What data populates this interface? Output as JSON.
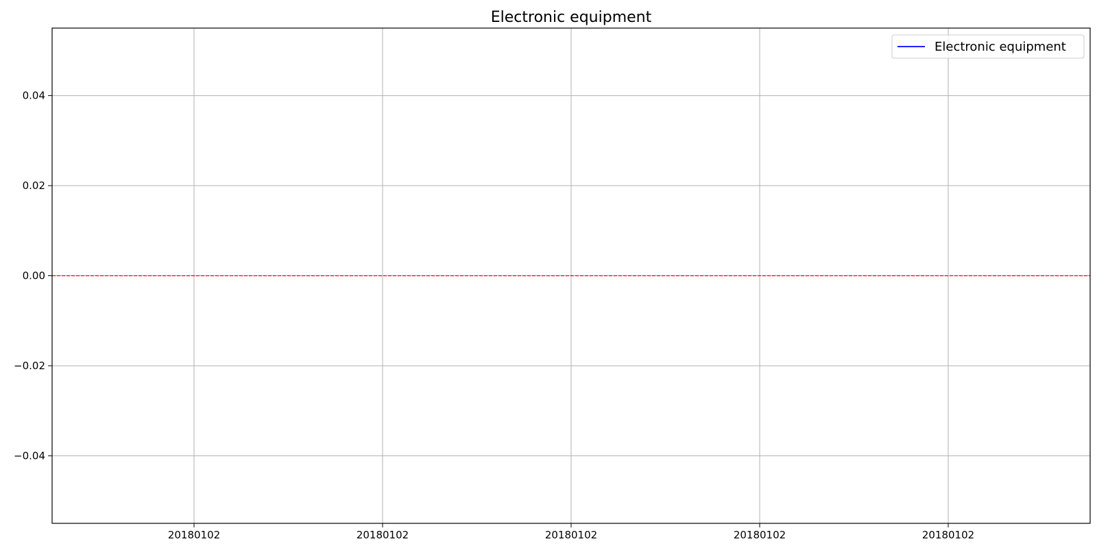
{
  "chart_data": {
    "type": "line",
    "title": "Electronic equipment",
    "xlabel": "",
    "ylabel": "",
    "x_ticks": [
      "20180102",
      "20180102",
      "20180102",
      "20180102",
      "20180102"
    ],
    "ylim": [
      -0.055,
      0.055
    ],
    "y_ticks": [
      "−0.04",
      "−0.02",
      "0.00",
      "0.02",
      "0.04"
    ],
    "y_tick_values": [
      -0.04,
      -0.02,
      0.0,
      0.02,
      0.04
    ],
    "series": [
      {
        "name": "Electronic equipment",
        "color": "#0000ff",
        "x": [],
        "values": []
      }
    ],
    "reference_line": {
      "y": 0.0,
      "color": "#ff0000",
      "style": "dashed"
    },
    "grid": true,
    "legend_position": "top-right"
  }
}
